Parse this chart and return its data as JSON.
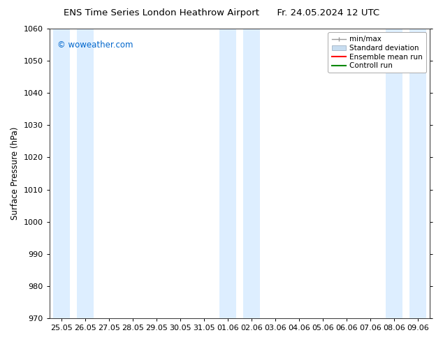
{
  "title_left": "ENS Time Series London Heathrow Airport",
  "title_right": "Fr. 24.05.2024 12 UTC",
  "ylabel": "Surface Pressure (hPa)",
  "ylim": [
    970,
    1060
  ],
  "yticks": [
    970,
    980,
    990,
    1000,
    1010,
    1020,
    1030,
    1040,
    1050,
    1060
  ],
  "xtick_labels": [
    "25.05",
    "26.05",
    "27.05",
    "28.05",
    "29.05",
    "30.05",
    "31.05",
    "01.06",
    "02.06",
    "03.06",
    "04.06",
    "05.06",
    "06.06",
    "07.06",
    "08.06",
    "09.06"
  ],
  "n_ticks": 16,
  "watermark": "© woweather.com",
  "watermark_color": "#0066cc",
  "background_color": "#ffffff",
  "shaded_band_color": "#ddeeff",
  "shaded_columns": [
    0,
    1,
    7,
    8,
    14,
    15
  ],
  "legend_labels": [
    "min/max",
    "Standard deviation",
    "Ensemble mean run",
    "Controll run"
  ],
  "legend_minmax_color": "#999999",
  "legend_std_color": "#c8ddf0",
  "legend_ens_color": "#ff0000",
  "legend_ctrl_color": "#008800",
  "title_fontsize": 9.5,
  "ylabel_fontsize": 8.5,
  "tick_fontsize": 8,
  "legend_fontsize": 7.5
}
